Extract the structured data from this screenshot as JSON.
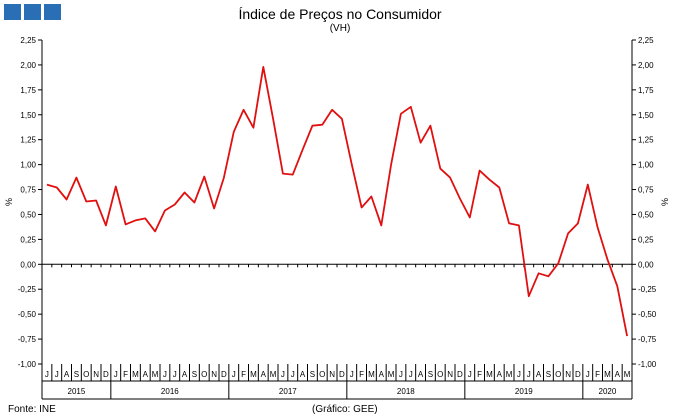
{
  "header": {
    "title": "Índice de Preços no Consumidor",
    "subtitle": "(VH)"
  },
  "footer": {
    "source": "Fonte: INE",
    "credit": "(Gráfico: GEE)"
  },
  "colors": {
    "logo": "#2a6fb5",
    "series": "#e01010"
  },
  "chart_data": {
    "type": "line",
    "title": "Índice de Preços no Consumidor",
    "subtitle": "(VH)",
    "ylabel": "%",
    "ylabel_right": "%",
    "ylim": [
      -1.0,
      2.25
    ],
    "yticks": [
      "2,25",
      "2,00",
      "1,75",
      "1,50",
      "1,25",
      "1,00",
      "0,75",
      "0,50",
      "0,25",
      "0,00",
      "-0,25",
      "-0,50",
      "-0,75",
      "-1,00"
    ],
    "month_labels": [
      "J",
      "J",
      "A",
      "S",
      "O",
      "N",
      "D",
      "J",
      "F",
      "M",
      "A",
      "M",
      "J",
      "J",
      "A",
      "S",
      "O",
      "N",
      "D",
      "J",
      "F",
      "M",
      "A",
      "M",
      "J",
      "J",
      "A",
      "S",
      "O",
      "N",
      "D",
      "J",
      "F",
      "M",
      "A",
      "M",
      "J",
      "J",
      "A",
      "S",
      "O",
      "N",
      "D",
      "J",
      "F",
      "M",
      "A",
      "M",
      "J",
      "J",
      "A",
      "S",
      "O",
      "N",
      "D",
      "J",
      "F",
      "M",
      "A",
      "M"
    ],
    "years": [
      {
        "label": "2015",
        "months": 7
      },
      {
        "label": "2016",
        "months": 12
      },
      {
        "label": "2017",
        "months": 12
      },
      {
        "label": "2018",
        "months": 12
      },
      {
        "label": "2019",
        "months": 12
      },
      {
        "label": "2020",
        "months": 5
      }
    ],
    "grid": false,
    "series": [
      {
        "values": [
          0.8,
          0.77,
          0.65,
          0.87,
          0.63,
          0.64,
          0.39,
          0.78,
          0.4,
          0.44,
          0.46,
          0.33,
          0.54,
          0.6,
          0.72,
          0.62,
          0.88,
          0.56,
          0.87,
          1.33,
          1.55,
          1.37,
          1.98,
          1.46,
          0.91,
          0.9,
          1.15,
          1.39,
          1.4,
          1.55,
          1.46,
          1.0,
          0.57,
          0.68,
          0.39,
          1.0,
          1.51,
          1.58,
          1.22,
          1.39,
          0.96,
          0.87,
          0.66,
          0.47,
          0.94,
          0.85,
          0.77,
          0.41,
          0.39,
          -0.32,
          -0.09,
          -0.12,
          0.01,
          0.31,
          0.41,
          0.8,
          0.37,
          0.05,
          -0.22,
          -0.72
        ]
      }
    ]
  }
}
